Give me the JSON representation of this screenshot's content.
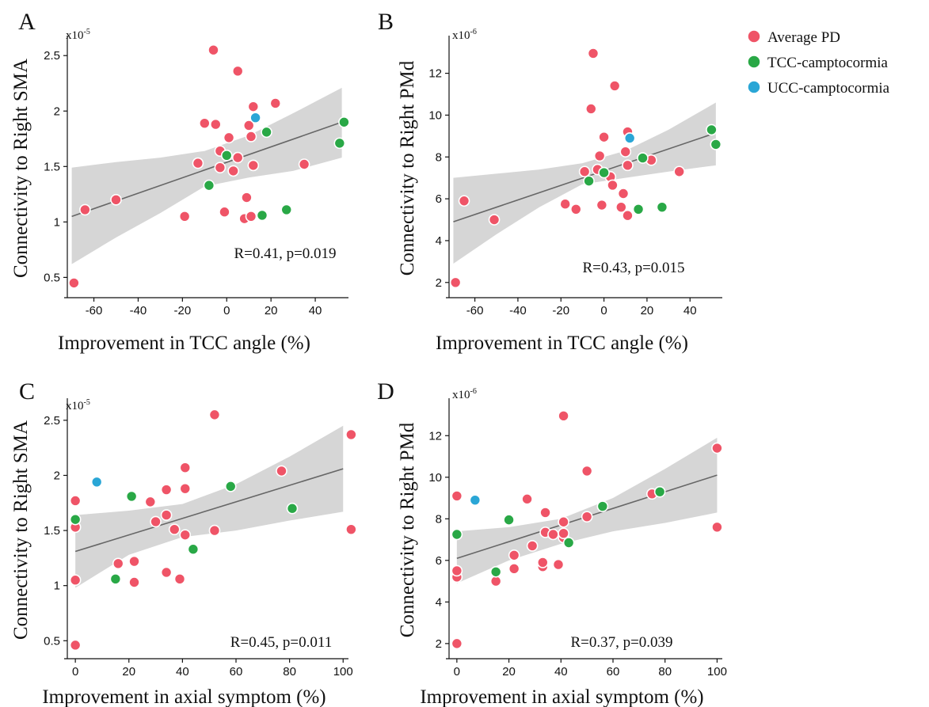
{
  "legend": [
    {
      "label": "Average PD",
      "color": "#ef5467"
    },
    {
      "label": "TCC-camptocormia",
      "color": "#29a846"
    },
    {
      "label": "UCC-camptocormia",
      "color": "#2aa6d6"
    }
  ],
  "group_colors": {
    "PD": "#ef5467",
    "TCC": "#29a846",
    "UCC": "#2aa6d6"
  },
  "ci_color": "#d6d6d6",
  "fit_color": "#666666",
  "chart_data": [
    {
      "type": "scatter",
      "panel": "A",
      "scale_base": "x10",
      "scale_exp": "-5",
      "xlabel": "Improvement in TCC angle (%)",
      "ylabel": "Connectivity to Right SMA",
      "xlim": [
        -72,
        55
      ],
      "ylim": [
        0.36,
        2.68
      ],
      "xticks": [
        -60,
        -40,
        -20,
        0,
        20,
        40
      ],
      "xtick_labels": [
        "-60",
        "-40",
        "-20",
        "0",
        "20",
        "40"
      ],
      "yticks": [
        0.5,
        1,
        1.5,
        2,
        2.5
      ],
      "ytick_labels": [
        "0.5",
        "1",
        "1.5",
        "2",
        "2.5"
      ],
      "stat": "R=0.41, p=0.019",
      "fit": {
        "x": [
          -70,
          52
        ],
        "y": [
          1.05,
          1.9
        ]
      },
      "ci": {
        "x": [
          -70,
          -50,
          -30,
          -10,
          10,
          30,
          52
        ],
        "upper": [
          1.49,
          1.54,
          1.58,
          1.64,
          1.78,
          1.98,
          2.21
        ],
        "lower": [
          0.62,
          0.86,
          1.08,
          1.32,
          1.4,
          1.46,
          1.58
        ]
      },
      "points": [
        {
          "group": "PD",
          "x": -69,
          "y": 0.45
        },
        {
          "group": "PD",
          "x": -64,
          "y": 1.11
        },
        {
          "group": "PD",
          "x": -50,
          "y": 1.2
        },
        {
          "group": "PD",
          "x": -19,
          "y": 1.05
        },
        {
          "group": "PD",
          "x": -13,
          "y": 1.53
        },
        {
          "group": "PD",
          "x": -10,
          "y": 1.89
        },
        {
          "group": "PD",
          "x": -6,
          "y": 2.55
        },
        {
          "group": "PD",
          "x": -5,
          "y": 1.88
        },
        {
          "group": "PD",
          "x": -3,
          "y": 1.64
        },
        {
          "group": "PD",
          "x": -3,
          "y": 1.49
        },
        {
          "group": "PD",
          "x": -1,
          "y": 1.09
        },
        {
          "group": "PD",
          "x": 1,
          "y": 1.76
        },
        {
          "group": "PD",
          "x": 3,
          "y": 1.46
        },
        {
          "group": "PD",
          "x": 5,
          "y": 2.36
        },
        {
          "group": "PD",
          "x": 5,
          "y": 1.58
        },
        {
          "group": "PD",
          "x": 8,
          "y": 1.03
        },
        {
          "group": "PD",
          "x": 9,
          "y": 1.22
        },
        {
          "group": "PD",
          "x": 10,
          "y": 1.87
        },
        {
          "group": "PD",
          "x": 11,
          "y": 1.77
        },
        {
          "group": "PD",
          "x": 11,
          "y": 1.05
        },
        {
          "group": "PD",
          "x": 12,
          "y": 2.04
        },
        {
          "group": "PD",
          "x": 12,
          "y": 1.51
        },
        {
          "group": "PD",
          "x": 22,
          "y": 2.07
        },
        {
          "group": "PD",
          "x": 35,
          "y": 1.52
        },
        {
          "group": "TCC",
          "x": -8,
          "y": 1.33
        },
        {
          "group": "TCC",
          "x": 0,
          "y": 1.6
        },
        {
          "group": "TCC",
          "x": 16,
          "y": 1.06
        },
        {
          "group": "TCC",
          "x": 18,
          "y": 1.81
        },
        {
          "group": "TCC",
          "x": 27,
          "y": 1.11
        },
        {
          "group": "TCC",
          "x": 51,
          "y": 1.71
        },
        {
          "group": "TCC",
          "x": 53,
          "y": 1.9
        },
        {
          "group": "UCC",
          "x": 13,
          "y": 1.94
        }
      ]
    },
    {
      "type": "scatter",
      "panel": "B",
      "scale_base": "x10",
      "scale_exp": "-6",
      "xlabel": "Improvement in TCC angle (%)",
      "ylabel": "Connectivity to Right PMd",
      "xlim": [
        -72,
        55
      ],
      "ylim": [
        1.5,
        13.8
      ],
      "xticks": [
        -60,
        -40,
        -20,
        0,
        20,
        40
      ],
      "xtick_labels": [
        "-60",
        "-40",
        "-20",
        "0",
        "20",
        "40"
      ],
      "yticks": [
        2,
        4,
        6,
        8,
        10,
        12
      ],
      "ytick_labels": [
        "2",
        "4",
        "6",
        "8",
        "10",
        "12"
      ],
      "stat": "R=0.43, p=0.015",
      "fit": {
        "x": [
          -70,
          52
        ],
        "y": [
          4.9,
          9.15
        ]
      },
      "ci": {
        "x": [
          -70,
          -50,
          -30,
          -10,
          10,
          30,
          52
        ],
        "upper": [
          7.0,
          7.2,
          7.4,
          7.7,
          8.3,
          9.3,
          10.6
        ],
        "lower": [
          2.9,
          4.3,
          5.6,
          6.7,
          7.0,
          7.3,
          7.6
        ]
      },
      "points": [
        {
          "group": "PD",
          "x": -69,
          "y": 2.0
        },
        {
          "group": "PD",
          "x": -65,
          "y": 5.9
        },
        {
          "group": "PD",
          "x": -51,
          "y": 5.0
        },
        {
          "group": "PD",
          "x": -18,
          "y": 5.75
        },
        {
          "group": "PD",
          "x": -13,
          "y": 5.5
        },
        {
          "group": "PD",
          "x": -9,
          "y": 7.3
        },
        {
          "group": "PD",
          "x": -6,
          "y": 10.3
        },
        {
          "group": "PD",
          "x": -5,
          "y": 12.95
        },
        {
          "group": "PD",
          "x": -2,
          "y": 8.05
        },
        {
          "group": "PD",
          "x": -3,
          "y": 7.4
        },
        {
          "group": "PD",
          "x": -1,
          "y": 5.7
        },
        {
          "group": "PD",
          "x": 0,
          "y": 8.95
        },
        {
          "group": "PD",
          "x": 3,
          "y": 7.05
        },
        {
          "group": "PD",
          "x": 4,
          "y": 6.65
        },
        {
          "group": "PD",
          "x": 5,
          "y": 11.4
        },
        {
          "group": "PD",
          "x": 8,
          "y": 5.6
        },
        {
          "group": "PD",
          "x": 9,
          "y": 6.25
        },
        {
          "group": "PD",
          "x": 10,
          "y": 8.25
        },
        {
          "group": "PD",
          "x": 11,
          "y": 7.6
        },
        {
          "group": "PD",
          "x": 11,
          "y": 5.2
        },
        {
          "group": "PD",
          "x": 11,
          "y": 9.2
        },
        {
          "group": "PD",
          "x": 22,
          "y": 7.85
        },
        {
          "group": "PD",
          "x": 35,
          "y": 7.3
        },
        {
          "group": "TCC",
          "x": -7,
          "y": 6.85
        },
        {
          "group": "TCC",
          "x": 0,
          "y": 7.25
        },
        {
          "group": "TCC",
          "x": 16,
          "y": 5.5
        },
        {
          "group": "TCC",
          "x": 18,
          "y": 7.95
        },
        {
          "group": "TCC",
          "x": 27,
          "y": 5.6
        },
        {
          "group": "TCC",
          "x": 50,
          "y": 9.3
        },
        {
          "group": "TCC",
          "x": 52,
          "y": 8.6
        },
        {
          "group": "UCC",
          "x": 12,
          "y": 8.9
        }
      ]
    },
    {
      "type": "scatter",
      "panel": "C",
      "scale_base": "x10",
      "scale_exp": "-5",
      "xlabel": "Improvement in axial symptom (%)",
      "ylabel": "Connectivity to Right SMA",
      "xlim": [
        -3,
        102
      ],
      "ylim": [
        0.38,
        2.7
      ],
      "xticks": [
        0,
        20,
        40,
        60,
        80,
        100
      ],
      "xtick_labels": [
        "0",
        "20",
        "40",
        "60",
        "80",
        "100"
      ],
      "yticks": [
        0.5,
        1,
        1.5,
        2,
        2.5
      ],
      "ytick_labels": [
        "0.5",
        "1",
        "1.5",
        "2",
        "2.5"
      ],
      "stat": "R=0.45, p=0.011",
      "fit": {
        "x": [
          0,
          100
        ],
        "y": [
          1.31,
          2.06
        ]
      },
      "ci": {
        "x": [
          0,
          20,
          40,
          60,
          80,
          100
        ],
        "upper": [
          1.64,
          1.68,
          1.74,
          1.92,
          2.17,
          2.45
        ],
        "lower": [
          0.98,
          1.28,
          1.44,
          1.5,
          1.59,
          1.67
        ]
      },
      "points": [
        {
          "group": "PD",
          "x": 0,
          "y": 0.46
        },
        {
          "group": "PD",
          "x": 0,
          "y": 1.05
        },
        {
          "group": "PD",
          "x": 0,
          "y": 1.53
        },
        {
          "group": "PD",
          "x": 0,
          "y": 1.77
        },
        {
          "group": "PD",
          "x": 16,
          "y": 1.2
        },
        {
          "group": "PD",
          "x": 22,
          "y": 1.03
        },
        {
          "group": "PD",
          "x": 22,
          "y": 1.22
        },
        {
          "group": "PD",
          "x": 28,
          "y": 1.76
        },
        {
          "group": "PD",
          "x": 30,
          "y": 1.58
        },
        {
          "group": "PD",
          "x": 34,
          "y": 1.12
        },
        {
          "group": "PD",
          "x": 34,
          "y": 1.64
        },
        {
          "group": "PD",
          "x": 34,
          "y": 1.87
        },
        {
          "group": "PD",
          "x": 37,
          "y": 1.51
        },
        {
          "group": "PD",
          "x": 39,
          "y": 1.06
        },
        {
          "group": "PD",
          "x": 41,
          "y": 1.88
        },
        {
          "group": "PD",
          "x": 41,
          "y": 2.07
        },
        {
          "group": "PD",
          "x": 41,
          "y": 1.46
        },
        {
          "group": "PD",
          "x": 52,
          "y": 2.55
        },
        {
          "group": "PD",
          "x": 52,
          "y": 1.5
        },
        {
          "group": "PD",
          "x": 77,
          "y": 2.04
        },
        {
          "group": "PD",
          "x": 103,
          "y": 2.37
        },
        {
          "group": "PD",
          "x": 103,
          "y": 1.51
        },
        {
          "group": "TCC",
          "x": 0,
          "y": 1.6
        },
        {
          "group": "TCC",
          "x": 15,
          "y": 1.06
        },
        {
          "group": "TCC",
          "x": 21,
          "y": 1.81
        },
        {
          "group": "TCC",
          "x": 44,
          "y": 1.33
        },
        {
          "group": "TCC",
          "x": 58,
          "y": 1.9
        },
        {
          "group": "TCC",
          "x": 81,
          "y": 1.7
        },
        {
          "group": "UCC",
          "x": 8,
          "y": 1.94
        }
      ]
    },
    {
      "type": "scatter",
      "panel": "D",
      "scale_base": "x10",
      "scale_exp": "-6",
      "xlabel": "Improvement in axial symptom (%)",
      "ylabel": "Connectivity to Right PMd",
      "xlim": [
        -3,
        102
      ],
      "ylim": [
        1.5,
        13.8
      ],
      "xticks": [
        0,
        20,
        40,
        60,
        80,
        100
      ],
      "xtick_labels": [
        "0",
        "20",
        "40",
        "60",
        "80",
        "100"
      ],
      "yticks": [
        2,
        4,
        6,
        8,
        10,
        12
      ],
      "ytick_labels": [
        "2",
        "4",
        "6",
        "8",
        "10",
        "12"
      ],
      "stat": "R=0.37, p=0.039",
      "fit": {
        "x": [
          0,
          100
        ],
        "y": [
          6.1,
          10.1
        ]
      },
      "ci": {
        "x": [
          0,
          20,
          40,
          60,
          80,
          100
        ],
        "upper": [
          7.4,
          7.6,
          8.0,
          9.0,
          10.4,
          11.9
        ],
        "lower": [
          4.9,
          6.0,
          6.8,
          7.4,
          7.8,
          8.3
        ]
      },
      "points": [
        {
          "group": "PD",
          "x": 0,
          "y": 2.0
        },
        {
          "group": "PD",
          "x": 0,
          "y": 5.2
        },
        {
          "group": "PD",
          "x": 0,
          "y": 5.5
        },
        {
          "group": "PD",
          "x": 0,
          "y": 9.1
        },
        {
          "group": "PD",
          "x": 15,
          "y": 5.0
        },
        {
          "group": "PD",
          "x": 22,
          "y": 5.6
        },
        {
          "group": "PD",
          "x": 22,
          "y": 6.25
        },
        {
          "group": "PD",
          "x": 27,
          "y": 8.95
        },
        {
          "group": "PD",
          "x": 29,
          "y": 6.7
        },
        {
          "group": "PD",
          "x": 33,
          "y": 5.7
        },
        {
          "group": "PD",
          "x": 33,
          "y": 5.9
        },
        {
          "group": "PD",
          "x": 34,
          "y": 7.35
        },
        {
          "group": "PD",
          "x": 34,
          "y": 8.3
        },
        {
          "group": "PD",
          "x": 37,
          "y": 7.25
        },
        {
          "group": "PD",
          "x": 39,
          "y": 5.8
        },
        {
          "group": "PD",
          "x": 41,
          "y": 7.1
        },
        {
          "group": "PD",
          "x": 41,
          "y": 7.3
        },
        {
          "group": "PD",
          "x": 41,
          "y": 7.85
        },
        {
          "group": "PD",
          "x": 41,
          "y": 12.95
        },
        {
          "group": "PD",
          "x": 50,
          "y": 10.3
        },
        {
          "group": "PD",
          "x": 50,
          "y": 8.1
        },
        {
          "group": "PD",
          "x": 75,
          "y": 9.2
        },
        {
          "group": "PD",
          "x": 100,
          "y": 11.4
        },
        {
          "group": "PD",
          "x": 100,
          "y": 7.6
        },
        {
          "group": "TCC",
          "x": 0,
          "y": 7.25
        },
        {
          "group": "TCC",
          "x": 15,
          "y": 5.45
        },
        {
          "group": "TCC",
          "x": 20,
          "y": 7.95
        },
        {
          "group": "TCC",
          "x": 43,
          "y": 6.85
        },
        {
          "group": "TCC",
          "x": 56,
          "y": 8.6
        },
        {
          "group": "TCC",
          "x": 78,
          "y": 9.3
        },
        {
          "group": "UCC",
          "x": 7,
          "y": 8.9
        }
      ]
    }
  ]
}
